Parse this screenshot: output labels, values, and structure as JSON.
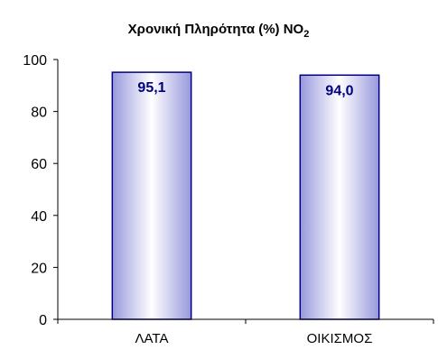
{
  "chart_data": {
    "type": "bar",
    "title": "Χρονική Πληρότητα (%) NO",
    "title_subscript": "2",
    "categories": [
      "ΛΑΤΑ",
      "ΟΙΚΙΣΜΟΣ"
    ],
    "values": [
      95.1,
      94.0
    ],
    "value_labels": [
      "95,1",
      "94,0"
    ],
    "yticks": [
      "0",
      "20",
      "40",
      "60",
      "80",
      "100"
    ],
    "ylim": [
      0,
      100
    ],
    "grid": false,
    "legend": "none",
    "xlabel": "",
    "ylabel": "",
    "colors": {
      "bar_edge": "#000080",
      "bar_dark": "#9999dd",
      "bar_light": "#ffffff",
      "label": "#000080",
      "axis": "#000000"
    }
  }
}
